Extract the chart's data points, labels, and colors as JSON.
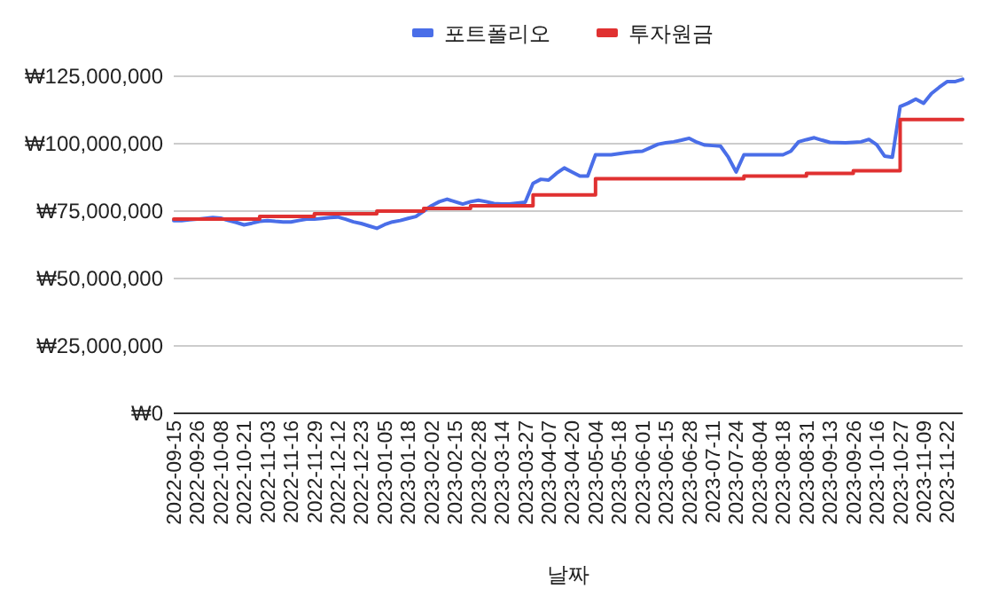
{
  "chart_data": {
    "type": "line",
    "xlabel": "날짜",
    "categories": [
      "2022-09-15",
      null,
      null,
      "2022-09-26",
      null,
      null,
      "2022-10-08",
      null,
      null,
      "2022-10-21",
      null,
      null,
      "2022-11-03",
      null,
      null,
      "2022-11-16",
      null,
      null,
      "2022-11-29",
      null,
      null,
      "2022-12-12",
      null,
      null,
      "2022-12-23",
      null,
      null,
      "2023-01-05",
      null,
      null,
      "2023-01-18",
      null,
      null,
      "2023-02-02",
      null,
      null,
      "2023-02-15",
      null,
      null,
      "2023-02-28",
      null,
      null,
      "2023-03-14",
      null,
      null,
      "2023-03-27",
      null,
      null,
      "2023-04-07",
      null,
      null,
      "2023-04-20",
      null,
      null,
      "2023-05-04",
      null,
      null,
      "2023-05-18",
      null,
      null,
      "2023-06-01",
      null,
      null,
      "2023-06-15",
      null,
      null,
      "2023-06-28",
      null,
      null,
      "2023-07-11",
      null,
      null,
      "2023-07-24",
      null,
      null,
      "2023-08-04",
      null,
      null,
      "2023-08-18",
      null,
      null,
      "2023-08-31",
      null,
      null,
      "2023-09-13",
      null,
      null,
      "2023-09-26",
      null,
      null,
      "2023-10-16",
      null,
      null,
      "2023-10-27",
      null,
      null,
      "2023-11-09",
      null,
      null,
      "2023-11-22",
      null,
      null
    ],
    "series": [
      {
        "name": "포트폴리오",
        "color": "#4a6ee8",
        "values": [
          71500000,
          71500000,
          71800000,
          72000000,
          72300000,
          72600000,
          72400000,
          71500000,
          70800000,
          69900000,
          70500000,
          71200000,
          71500000,
          71200000,
          71000000,
          71000000,
          71500000,
          72000000,
          72000000,
          72300000,
          72600000,
          72800000,
          72000000,
          71000000,
          70400000,
          69500000,
          68600000,
          70000000,
          71000000,
          71500000,
          72300000,
          73000000,
          75000000,
          77000000,
          78500000,
          79400000,
          78500000,
          77600000,
          78500000,
          79000000,
          78500000,
          77800000,
          77600000,
          77600000,
          78000000,
          78300000,
          85300000,
          86800000,
          86500000,
          89000000,
          91000000,
          89500000,
          88000000,
          88000000,
          95900000,
          95900000,
          95900000,
          96300000,
          96700000,
          97000000,
          97200000,
          98500000,
          99800000,
          100300000,
          100700000,
          101300000,
          102000000,
          100500000,
          99500000,
          99300000,
          99100000,
          95000000,
          89500000,
          95900000,
          95900000,
          95900000,
          95900000,
          95900000,
          95900000,
          97200000,
          100700000,
          101500000,
          102200000,
          101300000,
          100500000,
          100400000,
          100300000,
          100500000,
          100700000,
          101600000,
          99600000,
          95400000,
          95000000,
          113800000,
          115000000,
          116500000,
          115000000,
          118600000,
          120900000,
          123000000,
          123000000,
          123900000
        ]
      },
      {
        "name": "투자원금",
        "type": "step",
        "color": "#e03131",
        "values": [
          72000000,
          72000000,
          72000000,
          72000000,
          72000000,
          72000000,
          72000000,
          72000000,
          72000000,
          72000000,
          72000000,
          73000000,
          73000000,
          73000000,
          73000000,
          73000000,
          73000000,
          73000000,
          74000000,
          74000000,
          74000000,
          74000000,
          74000000,
          74000000,
          74000000,
          74000000,
          75000000,
          75000000,
          75000000,
          75000000,
          75000000,
          75000000,
          76000000,
          76000000,
          76000000,
          76000000,
          76000000,
          76000000,
          77000000,
          77000000,
          77000000,
          77000000,
          77000000,
          77000000,
          77000000,
          77000000,
          81000000,
          81000000,
          81000000,
          81000000,
          81000000,
          81000000,
          81000000,
          81000000,
          87000000,
          87000000,
          87000000,
          87000000,
          87000000,
          87000000,
          87000000,
          87000000,
          87000000,
          87000000,
          87000000,
          87000000,
          87000000,
          87000000,
          87000000,
          87000000,
          87000000,
          87000000,
          87000000,
          88000000,
          88000000,
          88000000,
          88000000,
          88000000,
          88000000,
          88000000,
          88000000,
          89000000,
          89000000,
          89000000,
          89000000,
          89000000,
          89000000,
          90000000,
          90000000,
          90000000,
          90000000,
          90000000,
          90000000,
          109000000,
          109000000,
          109000000,
          109000000,
          109000000,
          109000000,
          109000000,
          109000000,
          109000000
        ]
      }
    ],
    "ylim": [
      0,
      125000000
    ],
    "yticks": [
      {
        "value": 0,
        "label": "₩0"
      },
      {
        "value": 25000000,
        "label": "₩25,000,000"
      },
      {
        "value": 50000000,
        "label": "₩50,000,000"
      },
      {
        "value": 75000000,
        "label": "₩75,000,000"
      },
      {
        "value": 100000000,
        "label": "₩100,000,000"
      },
      {
        "value": 125000000,
        "label": "₩125,000,000"
      }
    ],
    "grid": "y",
    "legend": "top"
  }
}
